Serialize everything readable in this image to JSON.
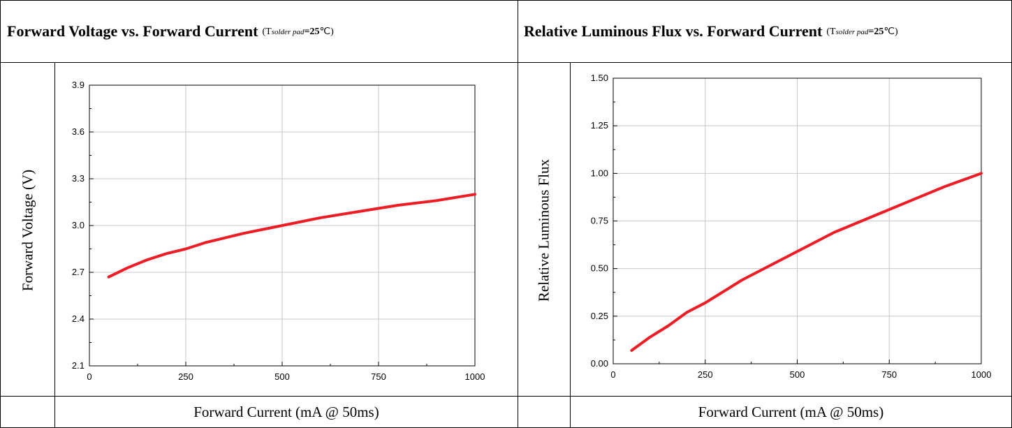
{
  "panels": [
    {
      "title": "Forward Voltage vs. Forward Current",
      "condition": {
        "open": "(T",
        "sub": "solder pad",
        "value": "=25",
        "unit": "℃)"
      }
    },
    {
      "title": "Relative Luminous Flux vs. Forward Current",
      "condition": {
        "open": "(T",
        "sub": "solder pad",
        "value": "=25",
        "unit": "℃)"
      }
    }
  ],
  "colors": {
    "curve": "#ee1c24",
    "grid": "#c8c8c8",
    "axis": "#000000"
  },
  "chart_data": [
    {
      "type": "line",
      "title": "Forward Voltage vs. Forward Current",
      "xlabel": "Forward Current (mA @ 50ms)",
      "ylabel": "Forward Voltage (V)",
      "xlim": [
        0,
        1000
      ],
      "ylim": [
        2.1,
        3.9
      ],
      "xticks": [
        0,
        250,
        500,
        750,
        1000
      ],
      "xtick_labels": [
        "0",
        "250",
        "500",
        "750",
        "1000"
      ],
      "yticks": [
        2.1,
        2.4,
        2.7,
        3.0,
        3.3,
        3.6,
        3.9
      ],
      "ytick_labels": [
        "2.1",
        "2.4",
        "2.7",
        "3.0",
        "3.3",
        "3.6",
        "3.9"
      ],
      "grid": true,
      "series": [
        {
          "x": [
            50,
            100,
            150,
            200,
            250,
            300,
            400,
            500,
            600,
            700,
            800,
            900,
            1000
          ],
          "y": [
            2.67,
            2.73,
            2.78,
            2.82,
            2.85,
            2.89,
            2.95,
            3.0,
            3.05,
            3.09,
            3.13,
            3.16,
            3.2
          ]
        }
      ]
    },
    {
      "type": "line",
      "title": "Relative Luminous Flux vs. Forward Current",
      "xlabel": "Forward Current (mA @ 50ms)",
      "ylabel": "Relative Luminous Flux",
      "xlim": [
        0,
        1000
      ],
      "ylim": [
        0,
        1.5
      ],
      "xticks": [
        0,
        250,
        500,
        750,
        1000
      ],
      "xtick_labels": [
        "0",
        "250",
        "500",
        "750",
        "1000"
      ],
      "yticks": [
        0,
        0.25,
        0.5,
        0.75,
        1.0,
        1.25,
        1.5
      ],
      "ytick_labels": [
        "0.00",
        "0.25",
        "0.50",
        "0.75",
        "1.00",
        "1.25",
        "1.50"
      ],
      "grid": true,
      "series": [
        {
          "x": [
            50,
            100,
            150,
            200,
            250,
            300,
            350,
            400,
            500,
            600,
            700,
            800,
            900,
            1000
          ],
          "y": [
            0.07,
            0.14,
            0.2,
            0.27,
            0.32,
            0.38,
            0.44,
            0.49,
            0.59,
            0.69,
            0.77,
            0.85,
            0.93,
            1.0
          ]
        }
      ]
    }
  ]
}
